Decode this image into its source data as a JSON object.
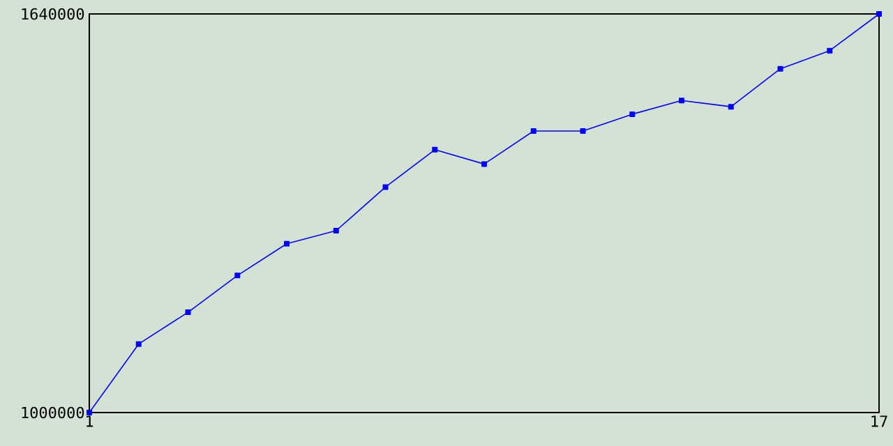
{
  "chart_data": {
    "type": "line",
    "x": [
      1,
      2,
      3,
      4,
      5,
      6,
      7,
      8,
      9,
      10,
      11,
      12,
      13,
      14,
      15,
      16,
      17
    ],
    "values": [
      1000000,
      1110000,
      1161000,
      1220000,
      1271000,
      1292000,
      1362000,
      1422000,
      1399000,
      1452000,
      1452000,
      1479000,
      1501000,
      1491000,
      1552000,
      1581000,
      1640000
    ],
    "color": "#0000ff",
    "marker": "square",
    "line_style": "solid",
    "xlim": [
      1,
      17
    ],
    "xticks": [
      1,
      17
    ],
    "ylim": [
      1000000,
      1640000
    ],
    "yticks": [
      1000000,
      1640000
    ]
  }
}
